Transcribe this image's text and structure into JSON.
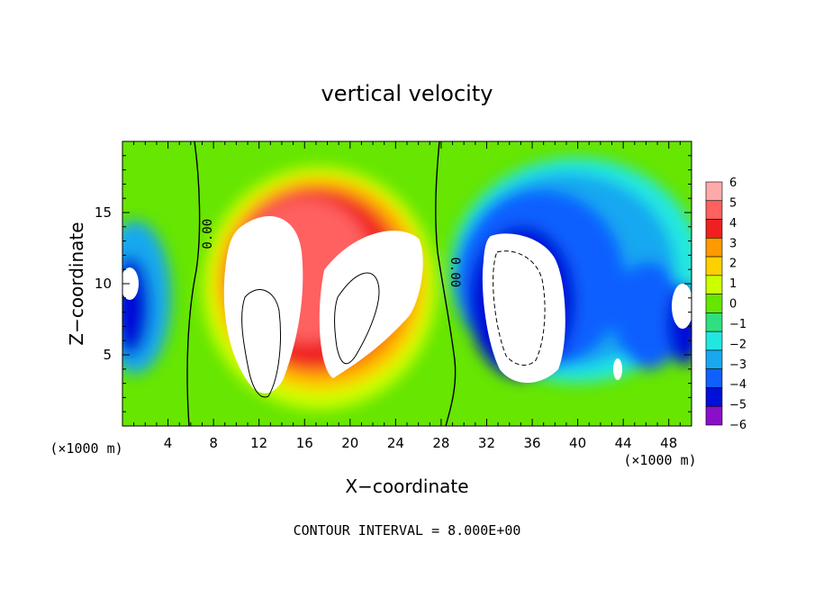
{
  "chart_data": {
    "type": "heatmap",
    "title": "vertical velocity",
    "xlabel": "X−coordinate",
    "ylabel": "Z−coordinate",
    "x_unit_left": "(×1000 m)",
    "x_unit_right": "(×1000 m)",
    "footer": "CONTOUR INTERVAL = 8.000E+00",
    "xlim": [
      0,
      50
    ],
    "ylim": [
      0,
      20
    ],
    "x_ticks": [
      4,
      8,
      12,
      16,
      20,
      24,
      28,
      32,
      36,
      40,
      44,
      48
    ],
    "y_ticks": [
      5,
      10,
      15
    ],
    "colorbar": {
      "levels": [
        6,
        5,
        4,
        3,
        2,
        1,
        0,
        -1,
        -2,
        -3,
        -4,
        -5,
        -6
      ],
      "labels": [
        "6",
        "5",
        "4",
        "3",
        "2",
        "1",
        "0",
        "−1",
        "−2",
        "−3",
        "−4",
        "−5",
        "−6"
      ],
      "colors": [
        "#ffaaaa",
        "#ff6060",
        "#f02020",
        "#ff9a00",
        "#ffd000",
        "#ccff00",
        "#66e600",
        "#30e080",
        "#20e8e0",
        "#18a8f0",
        "#1060ff",
        "#0010d8",
        "#8a10c8"
      ]
    },
    "contour_labels": [
      {
        "text": "0.00",
        "x": 7.5,
        "z": 13.5
      },
      {
        "text": "0.00",
        "x": 29.2,
        "z": 10.8
      }
    ],
    "features": [
      {
        "sign": "positive",
        "x_center": 12,
        "z_center": 9,
        "peak": "> 6",
        "description": "updraft core"
      },
      {
        "sign": "positive",
        "x_center": 21,
        "z_center": 10,
        "peak": "> 6",
        "description": "updraft core"
      },
      {
        "sign": "negative",
        "x_center": 35.5,
        "z_center": 9,
        "peak": "< -6",
        "description": "downdraft core"
      }
    ]
  }
}
